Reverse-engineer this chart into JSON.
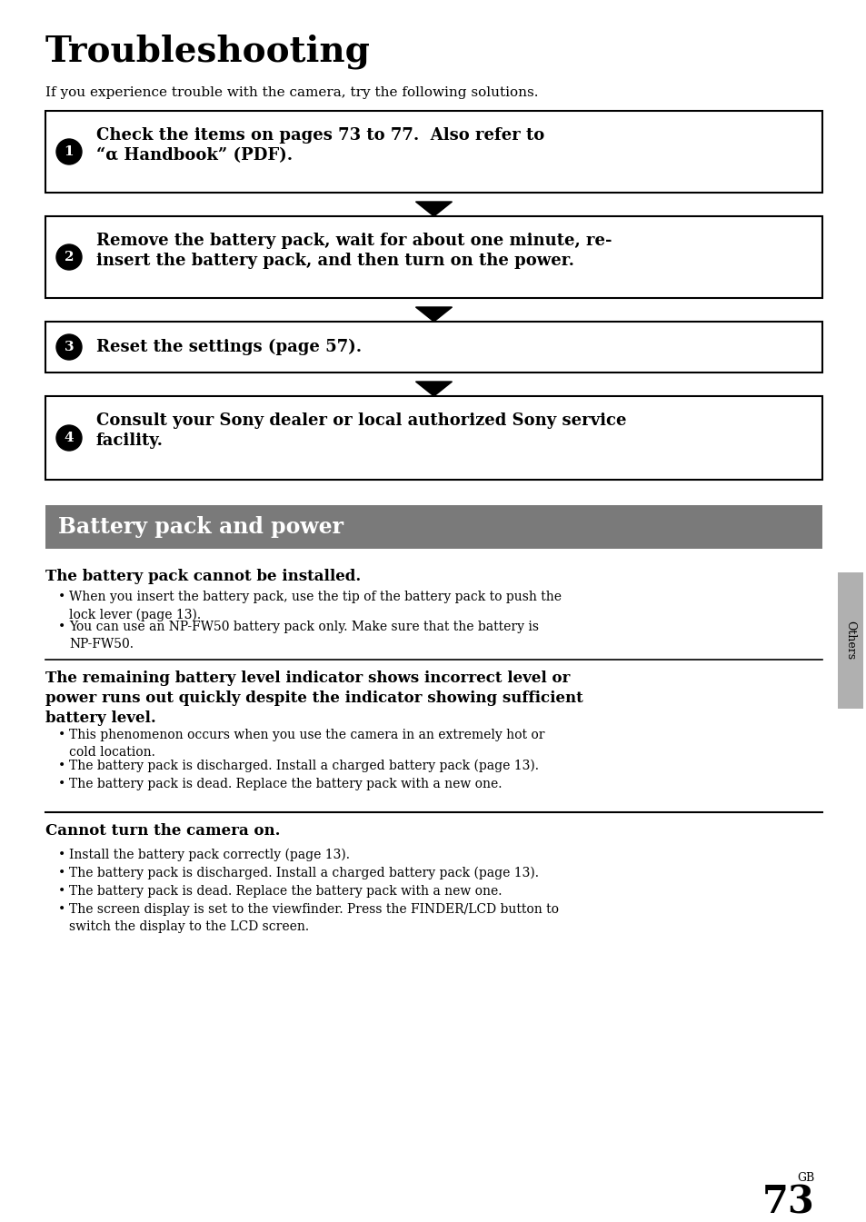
{
  "title": "Troubleshooting",
  "intro": "If you experience trouble with the camera, try the following solutions.",
  "steps": [
    {
      "num": "1",
      "text_line1": "Check the items on pages 73 to 77.  Also refer to",
      "text_line2": "“α Handbook” (PDF)."
    },
    {
      "num": "2",
      "text_line1": "Remove the battery pack, wait for about one minute, re-",
      "text_line2": "insert the battery pack, and then turn on the power."
    },
    {
      "num": "3",
      "text_line1": "Reset the settings (page 57).",
      "text_line2": ""
    },
    {
      "num": "4",
      "text_line1": "Consult your Sony dealer or local authorized Sony service",
      "text_line2": "facility."
    }
  ],
  "section_title": "Battery pack and power",
  "section_bg": "#7a7a7a",
  "sub1_heading": "The battery pack cannot be installed.",
  "sub1_bullets": [
    "When you insert the battery pack, use the tip of the battery pack to push the\nlock lever (page 13).",
    "You can use an NP-FW50 battery pack only. Make sure that the battery is\nNP-FW50."
  ],
  "sub2_heading": "The remaining battery level indicator shows incorrect level or\npower runs out quickly despite the indicator showing sufficient\nbattery level.",
  "sub2_bullets": [
    "This phenomenon occurs when you use the camera in an extremely hot or\ncold location.",
    "The battery pack is discharged. Install a charged battery pack (page 13).",
    "The battery pack is dead. Replace the battery pack with a new one."
  ],
  "sub3_heading": "Cannot turn the camera on.",
  "sub3_bullets": [
    "Install the battery pack correctly (page 13).",
    "The battery pack is discharged. Install a charged battery pack (page 13).",
    "The battery pack is dead. Replace the battery pack with a new one.",
    "The screen display is set to the viewfinder. Press the FINDER/LCD button to\nswitch the display to the LCD screen."
  ],
  "page_label": "GB",
  "page_num": "73",
  "bg_color": "#ffffff",
  "text_color": "#000000",
  "sidebar_color": "#b0b0b0",
  "sidebar_text": "Others"
}
